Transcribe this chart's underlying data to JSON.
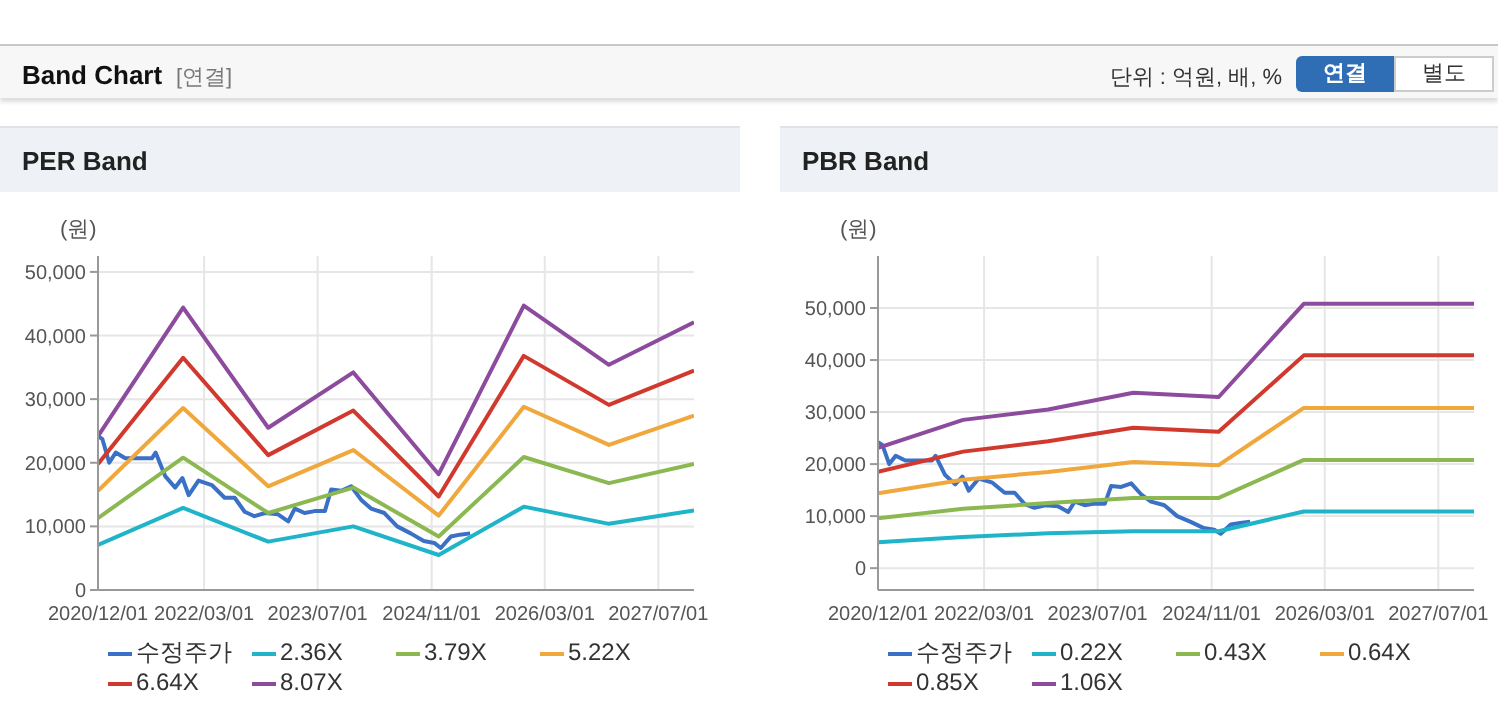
{
  "chart_data": [
    {
      "type": "line",
      "title": "PER Band",
      "ylabel": "(원)",
      "annotations": [
        "Band Chart",
        "[연결]",
        "단위 : 억원, 배, %",
        "연결",
        "별도"
      ],
      "xlim": [
        "2020-12-01",
        "2027-12-01"
      ],
      "xticks": [
        {
          "value": "2020-12-01",
          "label": "2020/12/01"
        },
        {
          "value": "2022-03-01",
          "label": "2022/03/01"
        },
        {
          "value": "2023-07-01",
          "label": "2023/07/01"
        },
        {
          "value": "2024-11-01",
          "label": "2024/11/01"
        },
        {
          "value": "2026-03-01",
          "label": "2026/03/01"
        },
        {
          "value": "2027-07-01",
          "label": "2027/07/01"
        }
      ],
      "ylim": [
        0,
        52500
      ],
      "yticks": [
        0,
        {
          "value": 10000,
          "label": "10,000"
        },
        {
          "value": 20000,
          "label": "20,000"
        },
        {
          "value": 30000,
          "label": "30,000"
        },
        {
          "value": 40000,
          "label": "40,000"
        },
        {
          "value": 50000,
          "label": "50,000"
        }
      ],
      "grid": true,
      "legend": "bottom",
      "marker": "none",
      "line_style": "solid",
      "series": [
        {
          "name": "수정주가",
          "color": "#3a70c6",
          "x": [
            "2020-12-01",
            "2020-12-20",
            "2021-01-18",
            "2021-02-15",
            "2021-03-28",
            "2021-07-20",
            "2021-08-05",
            "2021-09-15",
            "2021-10-28",
            "2021-11-28",
            "2021-12-25",
            "2022-02-05",
            "2022-04-03",
            "2022-05-28",
            "2022-07-10",
            "2022-08-22",
            "2022-10-03",
            "2022-11-18",
            "2023-01-12",
            "2023-02-25",
            "2023-03-25",
            "2023-05-06",
            "2023-06-18",
            "2023-08-01",
            "2023-08-28",
            "2023-10-10",
            "2023-11-22",
            "2024-01-03",
            "2024-02-15",
            "2024-04-12",
            "2024-06-06",
            "2024-08-03",
            "2024-09-28",
            "2024-11-12",
            "2024-12-10",
            "2025-01-22",
            "2025-03-03",
            "2025-04-15"
          ],
          "values": [
            24200,
            23700,
            20000,
            21600,
            20700,
            20700,
            21600,
            17900,
            16100,
            17600,
            14900,
            17200,
            16500,
            14500,
            14500,
            12300,
            11600,
            12100,
            11900,
            10800,
            12800,
            12100,
            12400,
            12400,
            15800,
            15600,
            16300,
            14200,
            12800,
            12100,
            10000,
            8900,
            7700,
            7400,
            6600,
            8400,
            8700,
            8900
          ]
        },
        {
          "name": "2.36X",
          "color": "#1fb4c8",
          "x": [
            "2020-12-01",
            "2021-12-01",
            "2022-12-01",
            "2023-12-01",
            "2024-12-01",
            "2025-12-01",
            "2026-12-01",
            "2027-12-01"
          ],
          "values": [
            7100,
            12900,
            7600,
            10000,
            5500,
            13100,
            10400,
            12500
          ]
        },
        {
          "name": "3.79X",
          "color": "#8cb852",
          "x": [
            "2020-12-01",
            "2021-12-01",
            "2022-12-01",
            "2023-12-01",
            "2024-12-01",
            "2025-12-01",
            "2026-12-01",
            "2027-12-01"
          ],
          "values": [
            11300,
            20800,
            12100,
            16100,
            8400,
            20900,
            16800,
            19800
          ]
        },
        {
          "name": "5.22X",
          "color": "#f0a73c",
          "x": [
            "2020-12-01",
            "2021-12-01",
            "2022-12-01",
            "2023-12-01",
            "2024-12-01",
            "2025-12-01",
            "2026-12-01",
            "2027-12-01"
          ],
          "values": [
            15600,
            28600,
            16300,
            22000,
            11700,
            28800,
            22800,
            27400
          ]
        },
        {
          "name": "6.64X",
          "color": "#d2392e",
          "x": [
            "2020-12-01",
            "2021-12-01",
            "2022-12-01",
            "2023-12-01",
            "2024-12-01",
            "2025-12-01",
            "2026-12-01",
            "2027-12-01"
          ],
          "values": [
            19800,
            36500,
            21200,
            28200,
            14700,
            36800,
            29100,
            34500
          ]
        },
        {
          "name": "8.07X",
          "color": "#8d4b9d",
          "x": [
            "2020-12-01",
            "2021-12-01",
            "2022-12-01",
            "2023-12-01",
            "2024-12-01",
            "2025-12-01",
            "2026-12-01",
            "2027-12-01"
          ],
          "values": [
            24200,
            44400,
            25500,
            34200,
            18200,
            44700,
            35400,
            42100
          ]
        }
      ]
    },
    {
      "type": "line",
      "title": "PBR Band",
      "ylabel": "(원)",
      "xlim": [
        "2020-12-01",
        "2027-12-01"
      ],
      "xticks": [
        {
          "value": "2020-12-01",
          "label": "2020/12/01"
        },
        {
          "value": "2022-03-01",
          "label": "2022/03/01"
        },
        {
          "value": "2023-07-01",
          "label": "2023/07/01"
        },
        {
          "value": "2024-11-01",
          "label": "2024/11/01"
        },
        {
          "value": "2026-03-01",
          "label": "2026/03/01"
        },
        {
          "value": "2027-07-01",
          "label": "2027/07/01"
        }
      ],
      "ylim": [
        -4200,
        60000
      ],
      "yticks": [
        0,
        {
          "value": 10000,
          "label": "10,000"
        },
        {
          "value": 20000,
          "label": "20,000"
        },
        {
          "value": 30000,
          "label": "30,000"
        },
        {
          "value": 40000,
          "label": "40,000"
        },
        {
          "value": 50000,
          "label": "50,000"
        }
      ],
      "grid": true,
      "legend": "bottom",
      "marker": "none",
      "line_style": "solid",
      "series": [
        {
          "name": "수정주가",
          "color": "#3a70c6",
          "x": [
            "2020-12-01",
            "2020-12-20",
            "2021-01-18",
            "2021-02-15",
            "2021-03-28",
            "2021-07-20",
            "2021-08-05",
            "2021-09-15",
            "2021-10-28",
            "2021-11-28",
            "2021-12-25",
            "2022-02-05",
            "2022-04-03",
            "2022-05-28",
            "2022-07-10",
            "2022-08-22",
            "2022-10-03",
            "2022-11-18",
            "2023-01-12",
            "2023-02-25",
            "2023-03-25",
            "2023-05-06",
            "2023-06-18",
            "2023-08-01",
            "2023-08-28",
            "2023-10-10",
            "2023-11-22",
            "2024-01-03",
            "2024-02-15",
            "2024-04-12",
            "2024-06-06",
            "2024-08-03",
            "2024-09-28",
            "2024-11-12",
            "2024-12-10",
            "2025-01-22",
            "2025-03-03",
            "2025-04-15"
          ],
          "values": [
            24200,
            23700,
            20000,
            21600,
            20700,
            20700,
            21600,
            17900,
            16100,
            17600,
            14900,
            17200,
            16500,
            14500,
            14500,
            12300,
            11600,
            12100,
            11900,
            10800,
            12800,
            12100,
            12400,
            12400,
            15800,
            15600,
            16300,
            14200,
            12800,
            12100,
            10000,
            8900,
            7700,
            7400,
            6600,
            8400,
            8700,
            8900
          ]
        },
        {
          "name": "0.22X",
          "color": "#1fb4c8",
          "x": [
            "2020-12-01",
            "2021-12-01",
            "2022-12-01",
            "2023-12-01",
            "2024-12-01",
            "2025-12-01",
            "2026-12-01",
            "2027-12-01"
          ],
          "values": [
            5000,
            6000,
            6700,
            7100,
            7100,
            10900,
            10900,
            10900
          ]
        },
        {
          "name": "0.43X",
          "color": "#8cb852",
          "x": [
            "2020-12-01",
            "2021-12-01",
            "2022-12-01",
            "2023-12-01",
            "2024-12-01",
            "2025-12-01",
            "2026-12-01",
            "2027-12-01"
          ],
          "values": [
            9600,
            11400,
            12500,
            13500,
            13500,
            20800,
            20800,
            20800
          ]
        },
        {
          "name": "0.64X",
          "color": "#f0a73c",
          "x": [
            "2020-12-01",
            "2021-12-01",
            "2022-12-01",
            "2023-12-01",
            "2024-12-01",
            "2025-12-01",
            "2026-12-01",
            "2027-12-01"
          ],
          "values": [
            14400,
            17000,
            18500,
            20400,
            19800,
            30800,
            30800,
            30800
          ]
        },
        {
          "name": "0.85X",
          "color": "#d2392e",
          "x": [
            "2020-12-01",
            "2021-12-01",
            "2022-12-01",
            "2023-12-01",
            "2024-12-01",
            "2025-12-01",
            "2026-12-01",
            "2027-12-01"
          ],
          "values": [
            18500,
            22400,
            24400,
            27000,
            26200,
            40900,
            40900,
            40900
          ]
        },
        {
          "name": "1.06X",
          "color": "#8d4b9d",
          "x": [
            "2020-12-01",
            "2021-12-01",
            "2022-12-01",
            "2023-12-01",
            "2024-12-01",
            "2025-12-01",
            "2026-12-01",
            "2027-12-01"
          ],
          "values": [
            23100,
            28500,
            30500,
            33700,
            32900,
            50800,
            50800,
            50800
          ]
        }
      ]
    }
  ]
}
